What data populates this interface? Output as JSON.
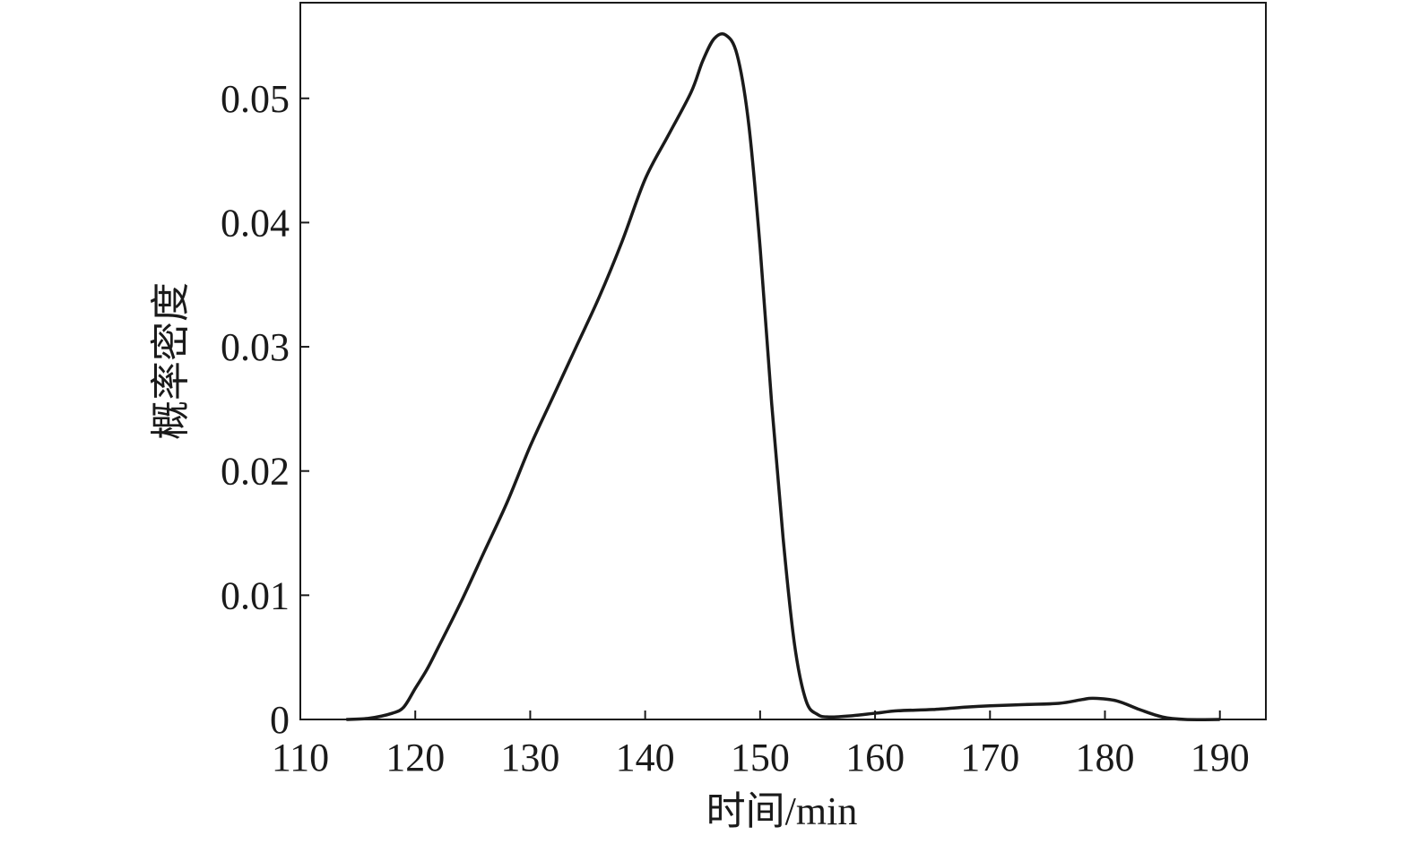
{
  "chart_data": {
    "type": "line",
    "xlabel": "时间/min",
    "ylabel": "概率密度",
    "x": [
      114,
      116,
      118,
      119,
      120,
      121,
      122,
      124,
      126,
      128,
      130,
      132,
      134,
      136,
      138,
      140,
      142,
      144,
      145,
      146,
      147,
      148,
      149,
      150,
      151,
      152,
      153,
      154,
      155,
      156,
      158,
      160,
      162,
      165,
      168,
      170,
      173,
      176,
      178,
      179,
      181,
      183,
      185,
      187,
      190
    ],
    "values": [
      0,
      0.0001,
      0.0005,
      0.001,
      0.0025,
      0.004,
      0.0058,
      0.0095,
      0.0135,
      0.0175,
      0.022,
      0.026,
      0.03,
      0.034,
      0.0385,
      0.0435,
      0.047,
      0.0505,
      0.053,
      0.0548,
      0.0551,
      0.0535,
      0.048,
      0.038,
      0.0255,
      0.0146,
      0.006,
      0.0015,
      0.0004,
      0.0002,
      0.0003,
      0.0005,
      0.0007,
      0.0008,
      0.001,
      0.0011,
      0.0012,
      0.0013,
      0.0016,
      0.0017,
      0.0015,
      0.0008,
      0.0002,
      0,
      0
    ],
    "color": "#1a1a1a",
    "xlim": [
      110,
      194
    ],
    "xticks": [
      110,
      120,
      130,
      140,
      150,
      160,
      170,
      180,
      190
    ],
    "ylim": [
      0,
      0.0577
    ],
    "yticks": [
      0,
      0.01,
      0.02,
      0.03,
      0.04,
      0.05
    ]
  }
}
